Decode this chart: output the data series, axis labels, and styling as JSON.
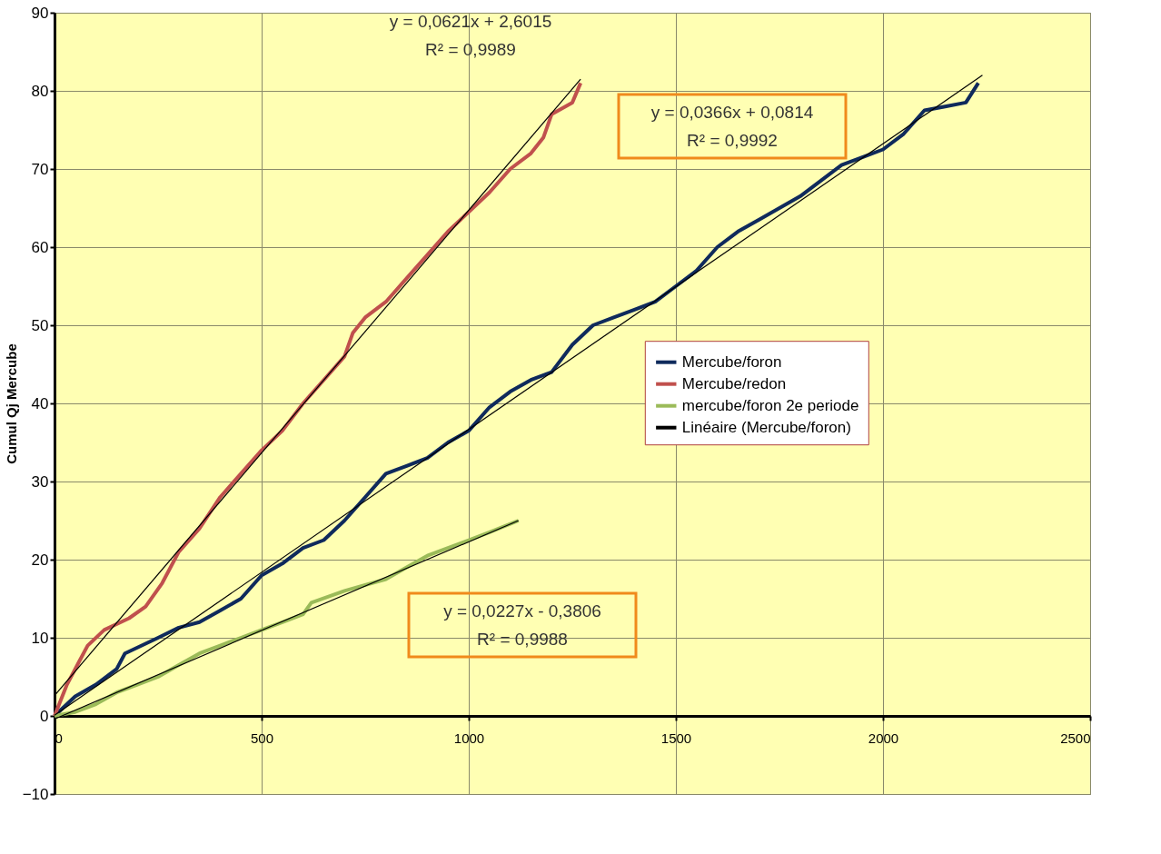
{
  "chart_data": {
    "type": "line",
    "ylabel": "Cumul Qj Mercube",
    "xlim": [
      0,
      2500
    ],
    "xticks": [
      0,
      500,
      1000,
      1500,
      2000,
      2500
    ],
    "ylim": [
      -10,
      90
    ],
    "yticks": [
      -10,
      0,
      10,
      20,
      30,
      40,
      50,
      60,
      70,
      80,
      90
    ],
    "grid": true,
    "legend": "right",
    "line_style": "solid",
    "marker": "none",
    "series": [
      {
        "name": "Mercube/foron",
        "color": "#0f2a5c",
        "x": [
          0,
          50,
          100,
          150,
          170,
          250,
          300,
          350,
          400,
          450,
          500,
          550,
          600,
          650,
          700,
          750,
          800,
          850,
          900,
          950,
          1000,
          1050,
          1100,
          1150,
          1200,
          1250,
          1300,
          1350,
          1400,
          1450,
          1500,
          1550,
          1600,
          1650,
          1700,
          1750,
          1800,
          1850,
          1900,
          1950,
          2000,
          2050,
          2100,
          2150,
          2200,
          2230
        ],
        "values": [
          0,
          2.5,
          4,
          6,
          8,
          10,
          11.3,
          12,
          13.5,
          15,
          18,
          19.5,
          21.5,
          22.5,
          25,
          28,
          31,
          32,
          33,
          35,
          36.5,
          39.5,
          41.5,
          43,
          44,
          47.5,
          50,
          51,
          52,
          53,
          55,
          57,
          60,
          62,
          63.5,
          65,
          66.5,
          68.5,
          70.5,
          71.5,
          72.5,
          74.5,
          77.5,
          78,
          78.5,
          81
        ]
      },
      {
        "name": "Mercube/redon",
        "color": "#c0504d",
        "x": [
          0,
          30,
          60,
          80,
          120,
          180,
          220,
          260,
          300,
          350,
          400,
          450,
          500,
          550,
          600,
          650,
          700,
          720,
          750,
          800,
          850,
          900,
          950,
          1000,
          1050,
          1100,
          1150,
          1180,
          1200,
          1250,
          1270
        ],
        "values": [
          0,
          4,
          7,
          9,
          11,
          12.5,
          14,
          17,
          21,
          24,
          28,
          31,
          34,
          36.5,
          40,
          43,
          46,
          49,
          51,
          53,
          56,
          59,
          62,
          64.5,
          67,
          70,
          72,
          74,
          77,
          78.5,
          81
        ]
      },
      {
        "name": "mercube/foron 2e periode",
        "color": "#9bbb59",
        "x": [
          0,
          50,
          100,
          150,
          200,
          250,
          300,
          350,
          400,
          450,
          500,
          550,
          600,
          620,
          700,
          800,
          850,
          900,
          950,
          1000,
          1050,
          1120
        ],
        "values": [
          0,
          0.5,
          1.5,
          3,
          4,
          5,
          6.5,
          8,
          9,
          10,
          11,
          12,
          13,
          14.5,
          16,
          17.5,
          19,
          20.5,
          21.5,
          22.5,
          23.5,
          25
        ]
      },
      {
        "name": "Linéaire (Mercube/foron)",
        "color": "#000000",
        "x": [
          0,
          2240
        ],
        "values": [
          0.1,
          82
        ]
      },
      {
        "color": "#000000",
        "x": [
          0,
          1270
        ],
        "values": [
          2.6,
          81.5
        ]
      },
      {
        "color": "#000000",
        "x": [
          0,
          1120
        ],
        "values": [
          -0.4,
          25
        ]
      }
    ],
    "annotations": [
      "y = 0,0621x + 2,6015",
      "R² = 0,9989",
      "y = 0,0366x + 0,0814",
      "R² = 0,9992",
      "y = 0,0227x - 0,3806",
      "R² = 0,9988"
    ]
  }
}
